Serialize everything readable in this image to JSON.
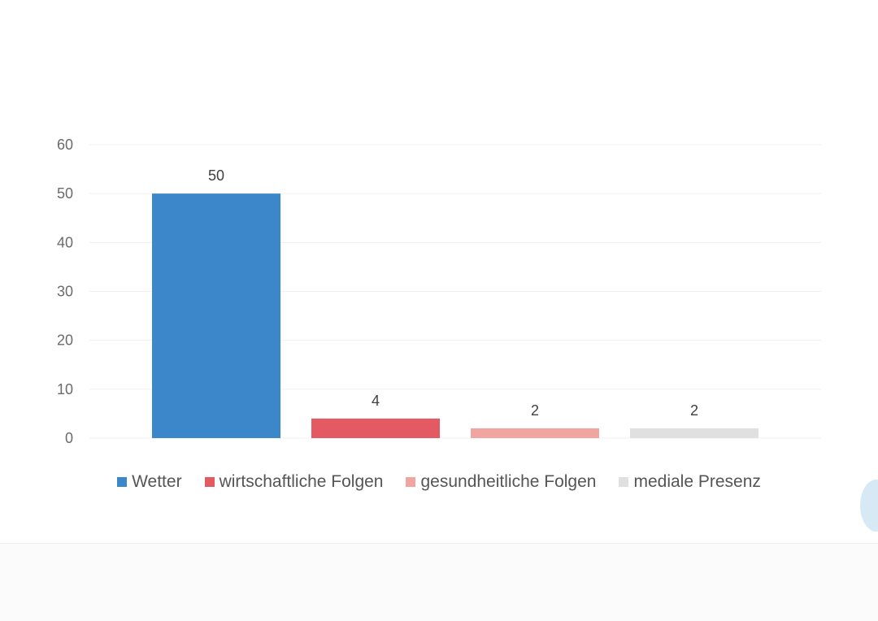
{
  "chart_data": {
    "type": "bar",
    "title": "",
    "xlabel": "",
    "ylabel": "",
    "categories": [
      "Wetter",
      "wirtschaftliche Folgen",
      "gesundheitliche Folgen",
      "mediale Presenz"
    ],
    "values": [
      50,
      4,
      2,
      2
    ],
    "data_labels": [
      "50",
      "4",
      "2",
      "2"
    ],
    "colors": [
      "#3b87c9",
      "#e35a62",
      "#f0a5a0",
      "#e0e0e0"
    ],
    "ylim": [
      0,
      60
    ],
    "yticks": [
      0,
      10,
      20,
      30,
      40,
      50,
      60
    ],
    "ytick_labels": [
      "0",
      "10",
      "20",
      "30",
      "40",
      "50",
      "60"
    ],
    "grid": true,
    "legend": {
      "placement": "bottom",
      "entries": [
        {
          "label": "Wetter",
          "color": "#3b87c9"
        },
        {
          "label": "wirtschaftliche Folgen",
          "color": "#e35a62"
        },
        {
          "label": "gesundheitliche Folgen",
          "color": "#f0a5a0"
        },
        {
          "label": "mediale Presenz",
          "color": "#e0e0e0"
        }
      ]
    }
  }
}
